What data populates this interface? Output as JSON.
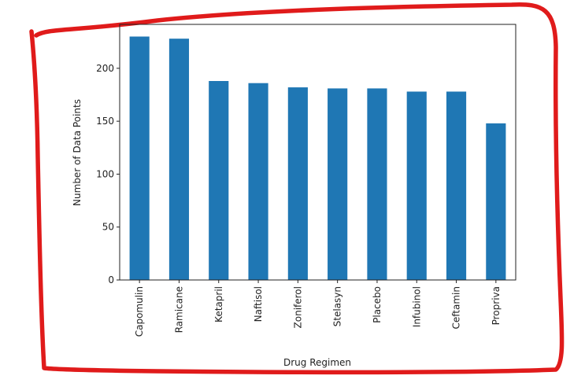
{
  "chart_data": {
    "type": "bar",
    "title": "",
    "xlabel": "Drug Regimen",
    "ylabel": "Number of Data Points",
    "categories": [
      "Capomulin",
      "Ramicane",
      "Ketapril",
      "Naftisol",
      "Zoniferol",
      "Stelasyn",
      "Placebo",
      "Infubinol",
      "Ceftamin",
      "Propriva"
    ],
    "values": [
      230,
      228,
      188,
      186,
      182,
      181,
      181,
      178,
      178,
      148
    ],
    "ylim": [
      0,
      241.5
    ],
    "yticks": [
      0,
      50,
      100,
      150,
      200
    ],
    "bar_color": "#1f77b4",
    "grid": false,
    "legend": "none"
  },
  "annotation": {
    "type": "hand-drawn-outline",
    "color": "#e01b1b"
  }
}
